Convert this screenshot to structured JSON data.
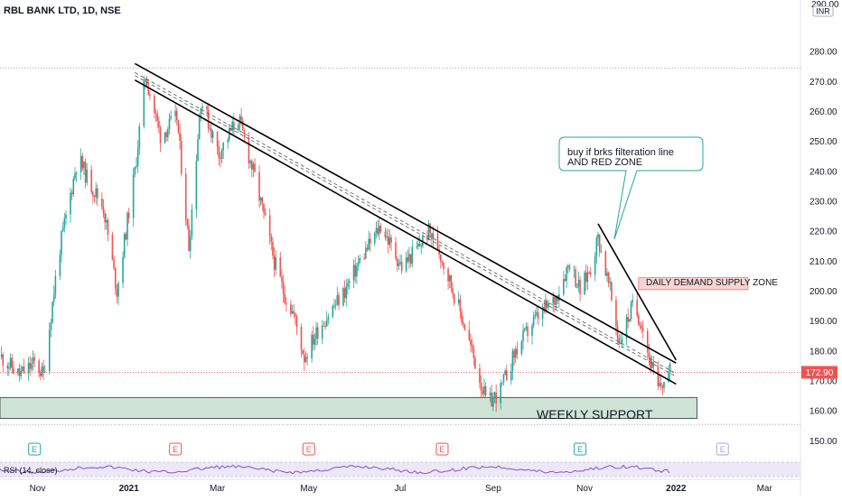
{
  "header": {
    "title": "RBL BANK LTD, 1D, NSE"
  },
  "price_axis": {
    "currency": "INR",
    "top_label": "290.00",
    "current_price": "172.90"
  },
  "colors": {
    "up": "#26a69a",
    "down": "#ef5350",
    "support_zone_fill": "#cfe3d6",
    "supply_zone_fill": "#f7d4d4",
    "price_line": "#ef5350",
    "trendline": "#000000",
    "earnings_green": "#26a69a",
    "earnings_red": "#ef5350",
    "earnings_future": "#b39ddb",
    "rsi": "#7e57c2"
  },
  "annotations": {
    "callout_line1": "buy if brks filteration line",
    "callout_line2": "AND RED ZONE",
    "supply_zone_label": "DAILY  DEMAND SUPPLY ZONE",
    "support_zone_label": "WEEKLY SUPPORT"
  },
  "earnings_markers": [
    {
      "label": "E",
      "color": "green",
      "date": "2020-10-30"
    },
    {
      "label": "E",
      "color": "red",
      "date": "2021-02-01"
    },
    {
      "label": "E",
      "color": "red",
      "date": "2021-05-01"
    },
    {
      "label": "E",
      "color": "red",
      "date": "2021-07-29"
    },
    {
      "label": "E",
      "color": "green",
      "date": "2021-10-29"
    },
    {
      "label": "E",
      "color": "future",
      "date": "2022-02-01"
    }
  ],
  "rsi": {
    "label": "RSI (14, close)"
  },
  "chart_data": {
    "type": "candlestick",
    "title": "RBL BANK LTD, 1D, NSE",
    "x_tick_labels": [
      "Nov",
      "2021",
      "Mar",
      "May",
      "Jul",
      "Sep",
      "Nov",
      "2022",
      "Mar"
    ],
    "x_tick_dates": [
      "2020-11-01",
      "2021-01-01",
      "2021-03-01",
      "2021-05-01",
      "2021-07-01",
      "2021-09-01",
      "2021-11-01",
      "2022-01-01",
      "2022-03-01"
    ],
    "y_tick_labels": [
      "150.00",
      "160.00",
      "170.00",
      "180.00",
      "190.00",
      "200.00",
      "210.00",
      "220.00",
      "230.00",
      "240.00",
      "250.00",
      "260.00",
      "270.00",
      "280.00"
    ],
    "y_ticks": [
      150,
      160,
      170,
      180,
      190,
      200,
      210,
      220,
      230,
      240,
      250,
      260,
      270,
      280
    ],
    "ylim": [
      145,
      290
    ],
    "x_range": [
      "2020-10-07",
      "2022-03-25"
    ],
    "path": [
      [
        "2020-10-08",
        178
      ],
      [
        "2020-10-20",
        172
      ],
      [
        "2020-10-30",
        176
      ],
      [
        "2020-11-05",
        172
      ],
      [
        "2020-11-15",
        212
      ],
      [
        "2020-11-28",
        245
      ],
      [
        "2020-12-04",
        238
      ],
      [
        "2020-12-15",
        228
      ],
      [
        "2020-12-24",
        200
      ],
      [
        "2021-01-05",
        240
      ],
      [
        "2021-01-12",
        272
      ],
      [
        "2021-01-22",
        252
      ],
      [
        "2021-02-02",
        258
      ],
      [
        "2021-02-10",
        215
      ],
      [
        "2021-02-18",
        264
      ],
      [
        "2021-03-02",
        246
      ],
      [
        "2021-03-15",
        258
      ],
      [
        "2021-03-26",
        238
      ],
      [
        "2021-04-08",
        210
      ],
      [
        "2021-04-14",
        200
      ],
      [
        "2021-04-21",
        192
      ],
      [
        "2021-04-28",
        178
      ],
      [
        "2021-05-08",
        188
      ],
      [
        "2021-05-25",
        200
      ],
      [
        "2021-06-04",
        210
      ],
      [
        "2021-06-18",
        222
      ],
      [
        "2021-07-02",
        208
      ],
      [
        "2021-07-12",
        214
      ],
      [
        "2021-07-20",
        220
      ],
      [
        "2021-07-26",
        215
      ],
      [
        "2021-08-02",
        205
      ],
      [
        "2021-08-12",
        190
      ],
      [
        "2021-08-20",
        176
      ],
      [
        "2021-08-28",
        162
      ],
      [
        "2021-09-06",
        167
      ],
      [
        "2021-09-16",
        180
      ],
      [
        "2021-09-28",
        190
      ],
      [
        "2021-10-12",
        197
      ],
      [
        "2021-10-22",
        210
      ],
      [
        "2021-10-29",
        200
      ],
      [
        "2021-11-05",
        208
      ],
      [
        "2021-11-10",
        218
      ],
      [
        "2021-11-18",
        200
      ],
      [
        "2021-11-24",
        183
      ],
      [
        "2021-12-03",
        195
      ],
      [
        "2021-12-09",
        190
      ],
      [
        "2021-12-14",
        178
      ],
      [
        "2021-12-20",
        167
      ],
      [
        "2021-12-28",
        172.9
      ]
    ],
    "horizontal_lines": [
      {
        "y": 274.5,
        "style": "dotted",
        "color": "gray"
      },
      {
        "y": 172.9,
        "style": "dotted",
        "color": "red"
      },
      {
        "y": 155.5,
        "style": "dotted",
        "color": "gray"
      }
    ],
    "zones": [
      {
        "name": "WEEKLY SUPPORT",
        "x0": "2020-10-07",
        "x1": "2022-01-15",
        "y0": 157.5,
        "y1": 164.5
      },
      {
        "name": "DAILY  DEMAND SUPPLY ZONE",
        "x0": "2021-12-07",
        "x1": "2022-02-18",
        "y0": 200.5,
        "y1": 204.5
      }
    ],
    "trendlines": [
      {
        "x0": "2021-01-05",
        "y0": 276,
        "x1": "2022-01-01",
        "y1": 176,
        "style": "solid"
      },
      {
        "x0": "2021-01-05",
        "y0": 270.5,
        "x1": "2022-01-01",
        "y1": 169,
        "style": "solid"
      },
      {
        "x0": "2021-01-05",
        "y0": 273,
        "x1": "2022-01-01",
        "y1": 172.5,
        "style": "dashed"
      },
      {
        "x0": "2021-01-05",
        "y0": 272,
        "x1": "2022-01-01",
        "y1": 171.5,
        "style": "dashed"
      },
      {
        "x0": "2021-11-10",
        "y0": 222.5,
        "x1": "2022-01-01",
        "y1": 177,
        "style": "solid"
      }
    ],
    "grid": false
  }
}
